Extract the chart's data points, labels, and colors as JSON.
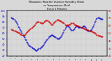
{
  "title": "Milwaukee Weather Outdoor Humidity (Blue)\nvs Temperature (Red)\nEvery 5 Minutes",
  "background_color": "#d8d8d8",
  "plot_bg_color": "#d8d8d8",
  "blue_color": "#0000cc",
  "red_color": "#cc0000",
  "ylim_left": [
    20,
    100
  ],
  "ylim_right": [
    20,
    80
  ],
  "n_points": 120,
  "humidity_data": [
    88,
    87,
    86,
    85,
    84,
    82,
    80,
    78,
    75,
    72,
    70,
    68,
    65,
    63,
    60,
    57,
    55,
    53,
    50,
    48,
    45,
    43,
    41,
    39,
    38,
    37,
    36,
    35,
    34,
    33,
    32,
    31,
    30,
    30,
    31,
    32,
    33,
    34,
    35,
    36,
    37,
    38,
    40,
    42,
    44,
    46,
    48,
    50,
    52,
    54,
    55,
    56,
    57,
    57,
    57,
    56,
    55,
    54,
    53,
    52,
    51,
    51,
    51,
    52,
    53,
    55,
    57,
    59,
    62,
    65,
    68,
    71,
    73,
    74,
    73,
    72,
    70,
    68,
    67,
    66,
    66,
    67,
    68,
    70,
    72,
    73,
    73,
    72,
    71,
    70,
    70,
    70,
    71,
    72,
    73,
    73,
    72,
    70,
    68,
    66,
    65,
    64,
    64,
    65,
    66,
    68,
    70,
    73,
    76,
    79,
    82,
    85,
    87,
    88,
    88,
    87,
    86,
    85,
    85,
    85
  ],
  "temperature_data": [
    55,
    55,
    54,
    54,
    53,
    53,
    52,
    52,
    51,
    51,
    50,
    50,
    49,
    49,
    48,
    48,
    48,
    48,
    49,
    50,
    51,
    52,
    53,
    54,
    55,
    56,
    57,
    58,
    59,
    60,
    61,
    62,
    63,
    64,
    65,
    65,
    65,
    64,
    64,
    63,
    63,
    63,
    64,
    65,
    66,
    67,
    67,
    67,
    66,
    65,
    64,
    63,
    62,
    62,
    62,
    63,
    64,
    65,
    66,
    67,
    68,
    68,
    67,
    67,
    66,
    66,
    65,
    64,
    64,
    63,
    62,
    61,
    61,
    61,
    61,
    62,
    62,
    62,
    63,
    63,
    63,
    63,
    62,
    62,
    61,
    61,
    60,
    60,
    60,
    59,
    59,
    58,
    58,
    57,
    57,
    56,
    56,
    55,
    55,
    55,
    54,
    54,
    53,
    53,
    53,
    52,
    52,
    51,
    51,
    50,
    50,
    49,
    48,
    48,
    47,
    47,
    47,
    46,
    46,
    46
  ]
}
